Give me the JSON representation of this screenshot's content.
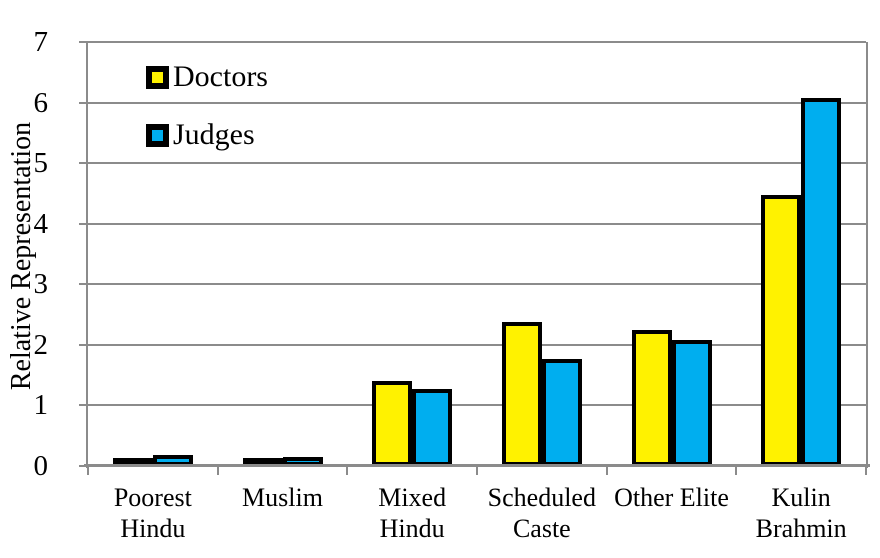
{
  "chart_data": {
    "type": "bar",
    "title": "",
    "xlabel": "",
    "ylabel": "Relative Representation",
    "ylim": [
      0,
      7
    ],
    "yticks": [
      0,
      1,
      2,
      3,
      4,
      5,
      6,
      7
    ],
    "grid": true,
    "legend_position": "top-left-inside",
    "categories": [
      [
        "Poorest",
        "Hindu"
      ],
      [
        "Muslim"
      ],
      [
        "Mixed",
        "Hindu"
      ],
      [
        "Scheduled",
        "Caste"
      ],
      [
        "Other Elite"
      ],
      [
        "Kulin",
        "Brahmin"
      ]
    ],
    "series": [
      {
        "name": "Doctors",
        "color": "#FFF200",
        "values": [
          0.08,
          0.12,
          1.41,
          2.38,
          2.24,
          4.47
        ]
      },
      {
        "name": "Judges",
        "color": "#00AEEF",
        "values": [
          0.19,
          0.15,
          1.27,
          1.76,
          2.08,
          6.08
        ]
      }
    ],
    "bar_border_color": "#000000",
    "axis_color": "#8B8B8B",
    "text_color": "#000000"
  }
}
